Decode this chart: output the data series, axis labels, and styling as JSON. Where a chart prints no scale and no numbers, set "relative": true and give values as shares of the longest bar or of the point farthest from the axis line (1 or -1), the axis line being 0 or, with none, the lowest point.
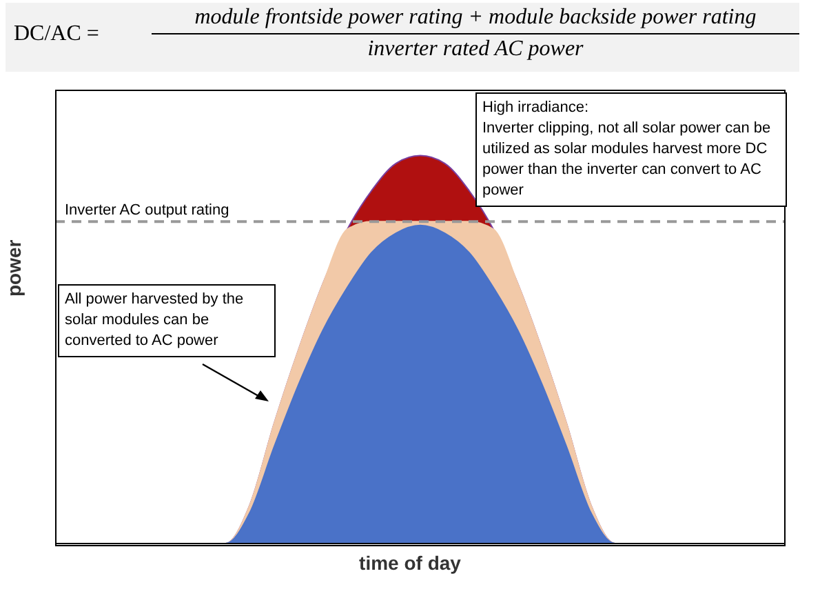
{
  "chart_data": {
    "type": "area",
    "relative": true,
    "title": "DC/AC =",
    "subtitle": "module frontside power rating + module backside power rating",
    "xlabel": "time of day",
    "ylabel": "power",
    "categories": [
      null,
      null,
      null,
      null,
      null,
      null,
      null,
      null,
      null,
      null,
      null,
      null,
      null,
      null,
      null,
      null,
      null,
      null,
      null,
      null,
      null,
      null,
      null,
      null,
      null,
      null,
      null,
      null,
      null,
      null,
      null
    ],
    "series": [
      {
        "color": "#b01010",
        "values": [
          0,
          0,
          0,
          0,
          0,
          0,
          0,
          0,
          0.1,
          0.31,
          0.5,
          0.67,
          0.81,
          0.91,
          0.98,
          1,
          0.98,
          0.91,
          0.81,
          0.67,
          0.5,
          0.31,
          0.1,
          0,
          0,
          0,
          0,
          0,
          0,
          0,
          0
        ]
      },
      {
        "color": "#f2c9a8",
        "values": [
          0,
          0,
          0,
          0,
          0,
          0,
          0,
          0,
          0.1,
          0.31,
          0.5,
          0.67,
          0.81,
          0.83,
          0.83,
          0.83,
          0.83,
          0.83,
          0.81,
          0.67,
          0.5,
          0.31,
          0.1,
          0,
          0,
          0,
          0,
          0,
          0,
          0,
          0
        ]
      },
      {
        "color": "#4a72c8",
        "values": [
          0,
          0,
          0,
          0,
          0,
          0,
          0,
          0,
          0.08,
          0.25,
          0.41,
          0.55,
          0.66,
          0.75,
          0.8,
          0.82,
          0.8,
          0.75,
          0.66,
          0.55,
          0.41,
          0.25,
          0.08,
          0,
          0,
          0,
          0,
          0,
          0,
          0,
          0
        ]
      }
    ],
    "ref_lines": [
      {
        "axis": "y",
        "value": 0.83,
        "label": "Inverter AC output rating",
        "color": "#999999",
        "line_style": "dashed"
      }
    ],
    "annotations": [
      "inverter rated AC power",
      "High irradiance:\nInverter clipping, not all solar power can be utilized as solar modules harvest more DC power than the inverter can convert to AC power",
      "All power harvested by the solar modules can be converted to AC power"
    ]
  }
}
